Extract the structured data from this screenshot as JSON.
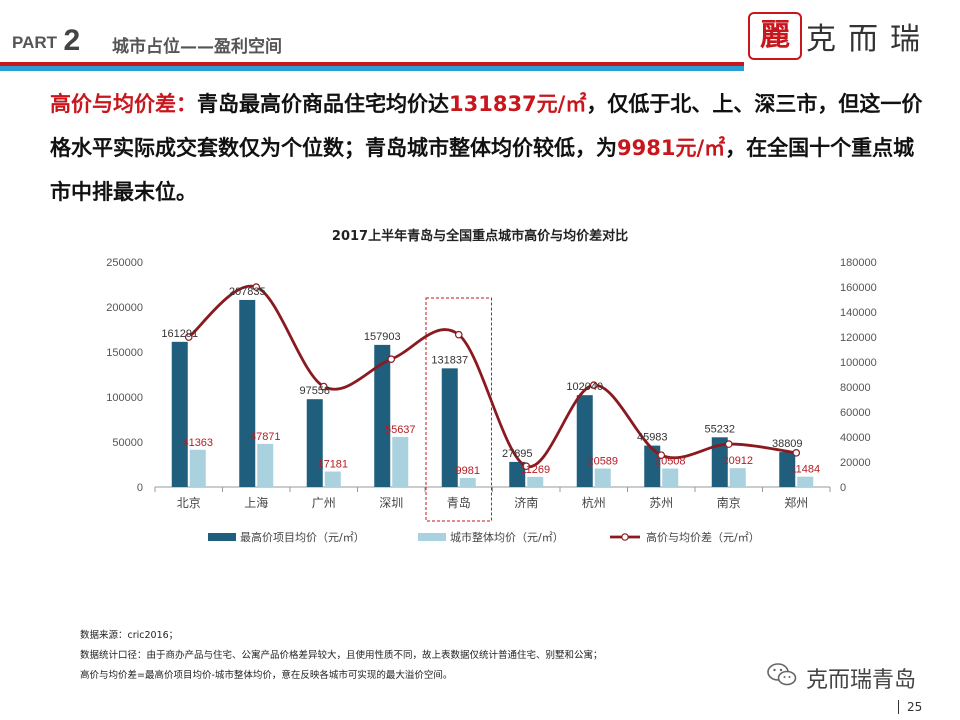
{
  "header": {
    "part_word": "PART",
    "part_num": "2",
    "subtitle": "城市占位——盈利空间",
    "logo_seal": "麗",
    "logo_text": "克而瑞"
  },
  "lead": {
    "t1": "高价与均价差：",
    "t2": "青岛最高价商品住宅均价达",
    "t3": "131837元/㎡",
    "t4": "，仅低于北、上、深三市，但这一价格水平实际成交套数仅为个位数；青岛城市整体均价较低，为",
    "t5": "9981元/㎡",
    "t6": "，在全国十个重点城市中排最末位。"
  },
  "chart_data": {
    "type": "bar",
    "title": "2017上半年青岛与全国重点城市高价与均价差对比",
    "categories": [
      "北京",
      "上海",
      "广州",
      "深圳",
      "青岛",
      "济南",
      "杭州",
      "苏州",
      "南京",
      "郑州"
    ],
    "series": [
      {
        "name": "最高价项目均价（元/㎡）",
        "type": "bar",
        "axis": "left",
        "color": "#1f5f7d",
        "values": [
          161291,
          207835,
          97558,
          157903,
          131837,
          27895,
          102040,
          45983,
          55232,
          38809
        ]
      },
      {
        "name": "城市整体均价（元/㎡）",
        "type": "bar",
        "axis": "left",
        "color": "#a9d1de",
        "values": [
          41363,
          47871,
          17181,
          55637,
          9981,
          11269,
          20589,
          20508,
          20912,
          11484
        ]
      },
      {
        "name": "高价与均价差（元/㎡）",
        "type": "line",
        "axis": "right",
        "color": "#8a1a20",
        "values": [
          119928,
          159964,
          80377,
          102266,
          121856,
          16626,
          81451,
          25475,
          34320,
          27325
        ]
      }
    ],
    "left_axis": {
      "min": 0,
      "max": 250000,
      "ticks": [
        0,
        50000,
        100000,
        150000,
        200000,
        250000
      ]
    },
    "right_axis": {
      "min": 0,
      "max": 180000,
      "ticks": [
        0,
        20000,
        40000,
        60000,
        80000,
        100000,
        120000,
        140000,
        160000,
        180000
      ]
    },
    "highlight_category": "青岛",
    "legend_position": "bottom",
    "grid": false
  },
  "notes": [
    "数据来源：cric2016；",
    "数据统计口径：由于商办产品与住宅、公寓产品价格差异较大，且使用性质不同，故上表数据仅统计普通住宅、别墅和公寓；",
    "高价与均价差=最高价项目均价-城市整体均价，意在反映各城市可实现的最大溢价空间。"
  ],
  "footer": {
    "brand": "克而瑞青岛",
    "page": "25"
  }
}
